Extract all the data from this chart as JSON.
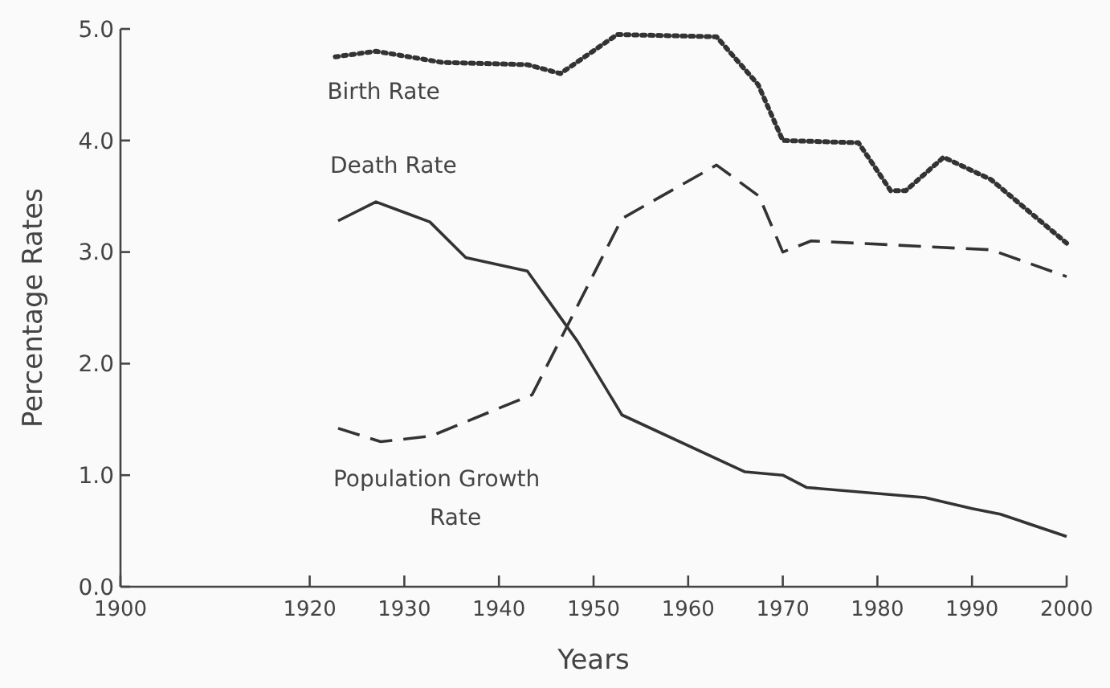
{
  "chart_data": {
    "type": "line",
    "xlabel": "Years",
    "ylabel": "Percentage Rates",
    "xlim": [
      1900,
      2000
    ],
    "ylim": [
      0,
      5
    ],
    "xticks": [
      1900,
      1920,
      1930,
      1940,
      1950,
      1960,
      1970,
      1980,
      1990,
      2000
    ],
    "yticks": [
      {
        "value": 0,
        "label": "0.0"
      },
      {
        "value": 1,
        "label": "1.0"
      },
      {
        "value": 2,
        "label": "2.0"
      },
      {
        "value": 3,
        "label": "3.0"
      },
      {
        "value": 4,
        "label": "4.0"
      },
      {
        "value": 5,
        "label": "5.0"
      }
    ],
    "grid": false,
    "marker": "none",
    "series": [
      {
        "name": "Birth Rate",
        "color": "#333333",
        "line_style": "dotted",
        "x": [
          1922.7,
          1927,
          1934,
          1943,
          1946.5,
          1952.5,
          1963,
          1967.4,
          1970,
          1978,
          1981.4,
          1983,
          1987,
          1992,
          2000
        ],
        "values": [
          4.75,
          4.8,
          4.7,
          4.68,
          4.6,
          4.95,
          4.93,
          4.5,
          4.0,
          3.98,
          3.55,
          3.55,
          3.85,
          3.65,
          3.08
        ]
      },
      {
        "name": "Death Rate",
        "color": "#333333",
        "line_style": "solid",
        "x": [
          1923,
          1927,
          1932.7,
          1936.5,
          1943,
          1948.3,
          1953,
          1966,
          1970,
          1972.5,
          1985,
          1990,
          1993,
          2000
        ],
        "values": [
          3.28,
          3.45,
          3.27,
          2.95,
          2.83,
          2.2,
          1.54,
          1.03,
          1.0,
          0.89,
          0.8,
          0.7,
          0.65,
          0.45
        ]
      },
      {
        "name": "Population Growth Rate",
        "color": "#333333",
        "line_style": "dashed",
        "x": [
          1923,
          1927.5,
          1932.8,
          1940,
          1943.5,
          1947,
          1953,
          1963,
          1967.5,
          1970,
          1973,
          1992,
          2000
        ],
        "values": [
          1.42,
          1.3,
          1.35,
          1.6,
          1.72,
          2.3,
          3.3,
          3.78,
          3.5,
          3.0,
          3.1,
          3.02,
          2.78
        ]
      }
    ]
  }
}
